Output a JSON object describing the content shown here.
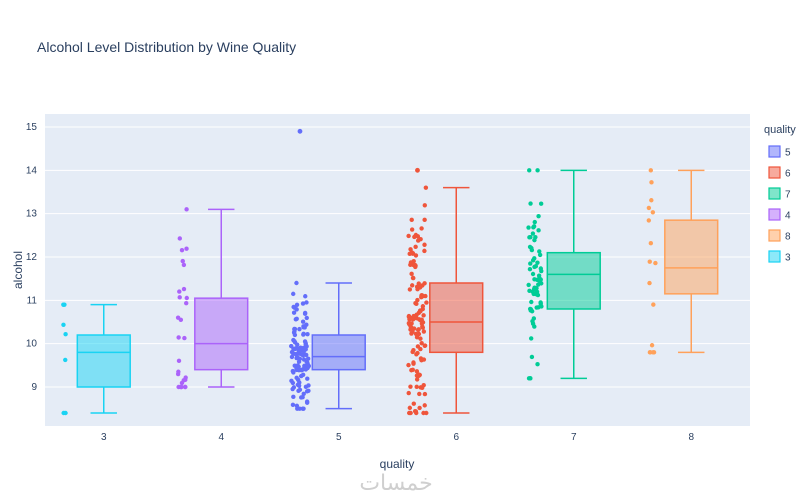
{
  "chart_data": {
    "type": "box",
    "title": "Alcohol Level Distribution by Wine Quality",
    "xlabel": "quality",
    "ylabel": "alcohol",
    "ylim": [
      8.1,
      15.3
    ],
    "yticks": [
      9,
      10,
      11,
      12,
      13,
      14,
      15
    ],
    "grid": true,
    "legend_title": "quality",
    "legend_placement": "top-right",
    "categories": [
      "3",
      "4",
      "5",
      "6",
      "7",
      "8"
    ],
    "series": [
      {
        "name": "5",
        "category": "5",
        "color": "#636efa",
        "min": 8.5,
        "q1": 9.4,
        "median": 9.7,
        "q3": 10.2,
        "max": 11.4,
        "outliers": [
          14.9
        ],
        "n_points": 120
      },
      {
        "name": "6",
        "category": "6",
        "color": "#ef553b",
        "min": 8.4,
        "q1": 9.8,
        "median": 10.5,
        "q3": 11.4,
        "max": 13.6,
        "outliers": [
          14.0
        ],
        "n_points": 130
      },
      {
        "name": "7",
        "category": "7",
        "color": "#00cc96",
        "min": 9.2,
        "q1": 10.8,
        "median": 11.6,
        "q3": 12.1,
        "max": 14.0,
        "outliers": [],
        "n_points": 70
      },
      {
        "name": "4",
        "category": "4",
        "color": "#ab63fa",
        "min": 9.0,
        "q1": 9.4,
        "median": 10.0,
        "q3": 11.05,
        "max": 13.1,
        "outliers": [],
        "n_points": 28
      },
      {
        "name": "8",
        "category": "8",
        "color": "#ffa15a",
        "min": 9.8,
        "q1": 11.15,
        "median": 11.75,
        "q3": 12.85,
        "max": 14.0,
        "outliers": [],
        "n_points": 16
      },
      {
        "name": "3",
        "category": "3",
        "color": "#19d3f3",
        "min": 8.4,
        "q1": 9.0,
        "median": 9.8,
        "q3": 10.2,
        "max": 10.9,
        "outliers": [],
        "n_points": 8
      }
    ]
  },
  "watermark": "خمسات"
}
